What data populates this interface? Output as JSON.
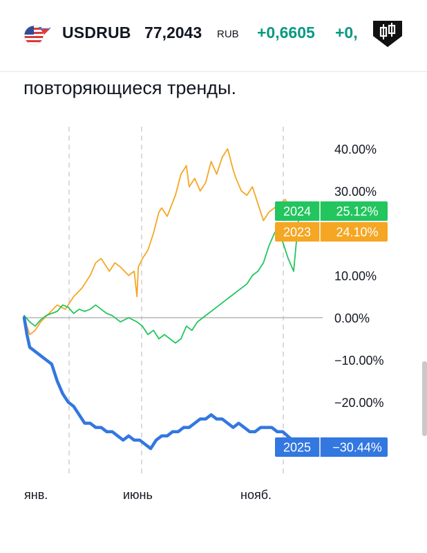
{
  "header": {
    "symbol": "USDRUB",
    "price": "77,2043",
    "currency": "RUB",
    "change": "+0,6605",
    "change_percent": "+0,",
    "flag_icon": "us-ru-flag-icon",
    "badge_icon": "candlestick-badge-icon",
    "positive_color": "#089981"
  },
  "content": {
    "subtitle": "повторяющиеся тренды."
  },
  "chart_data": {
    "type": "line",
    "x_tick_labels": [
      "янв.",
      "июнь",
      "нояб."
    ],
    "y_tick_labels": [
      "40.00%",
      "30.00%",
      "10.00%",
      "0.00%",
      "−10.00%",
      "−20.00%"
    ],
    "ylim": [
      -30,
      40
    ],
    "grid": "vertical-dashed",
    "series": [
      {
        "name": "2023",
        "color": "#f5a623",
        "label_value": "24.10%",
        "x": [
          0,
          0.01,
          0.02,
          0.04,
          0.06,
          0.09,
          0.12,
          0.15,
          0.18,
          0.21,
          0.24,
          0.26,
          0.28,
          0.31,
          0.33,
          0.35,
          0.38,
          0.4,
          0.41,
          0.415,
          0.43,
          0.45,
          0.47,
          0.49,
          0.5,
          0.52,
          0.55,
          0.57,
          0.59,
          0.6,
          0.62,
          0.64,
          0.66,
          0.68,
          0.7,
          0.72,
          0.74,
          0.76,
          0.77,
          0.79,
          0.81,
          0.83,
          0.85,
          0.87,
          0.89,
          0.91,
          0.93,
          0.95,
          0.97,
          1.0
        ],
        "values": [
          0.5,
          -2,
          -4,
          -3,
          -1,
          1,
          3,
          2,
          5,
          7,
          10,
          13,
          14,
          11,
          13,
          12,
          10,
          11,
          5,
          12,
          14,
          16,
          20,
          25,
          26,
          24,
          29,
          34,
          36,
          31,
          33,
          30,
          32,
          37,
          34,
          38,
          40,
          35,
          33,
          30,
          29,
          31,
          27,
          23,
          25,
          26,
          27,
          28,
          25,
          24.1
        ]
      },
      {
        "name": "2024",
        "color": "#22c55e",
        "label_value": "25.12%",
        "x": [
          0,
          0.02,
          0.04,
          0.06,
          0.08,
          0.1,
          0.12,
          0.14,
          0.16,
          0.18,
          0.2,
          0.22,
          0.24,
          0.26,
          0.28,
          0.3,
          0.32,
          0.35,
          0.38,
          0.41,
          0.43,
          0.45,
          0.47,
          0.49,
          0.51,
          0.53,
          0.55,
          0.57,
          0.59,
          0.61,
          0.63,
          0.65,
          0.67,
          0.69,
          0.71,
          0.73,
          0.75,
          0.77,
          0.79,
          0.81,
          0.83,
          0.85,
          0.87,
          0.89,
          0.91,
          0.93,
          0.94,
          0.96,
          0.98,
          1.0
        ],
        "values": [
          0.5,
          -1,
          -2,
          -0.5,
          0.5,
          1,
          1.5,
          3,
          2.5,
          1,
          2,
          1.5,
          2,
          3,
          2,
          1,
          0.5,
          -1,
          0,
          -1,
          -2,
          -4,
          -3,
          -5,
          -4,
          -5,
          -6,
          -5,
          -2,
          -3,
          -1,
          0,
          1,
          2,
          3,
          4,
          5,
          6,
          7,
          8,
          10,
          11,
          13,
          17,
          20,
          22,
          18,
          14,
          11,
          25.12
        ]
      },
      {
        "name": "2025",
        "color": "#3377e0",
        "label_value": "−30.44%",
        "x": [
          0,
          0.01,
          0.02,
          0.04,
          0.06,
          0.08,
          0.1,
          0.12,
          0.14,
          0.16,
          0.18,
          0.2,
          0.22,
          0.24,
          0.26,
          0.28,
          0.3,
          0.32,
          0.34,
          0.36,
          0.38,
          0.4,
          0.42,
          0.44,
          0.46,
          0.48,
          0.5,
          0.52,
          0.54,
          0.56,
          0.58,
          0.6,
          0.62,
          0.64,
          0.66,
          0.68,
          0.7,
          0.72,
          0.74,
          0.76,
          0.78,
          0.8,
          0.82,
          0.84,
          0.86,
          0.88,
          0.9,
          0.92,
          0.94,
          1.0
        ],
        "values": [
          0,
          -4,
          -7,
          -8,
          -9,
          -10,
          -11,
          -15,
          -18,
          -20,
          -21,
          -23,
          -25,
          -25,
          -26,
          -26,
          -27,
          -27,
          -28,
          -29,
          -28,
          -29,
          -29,
          -30,
          -31,
          -29,
          -28,
          -28,
          -27,
          -27,
          -26,
          -26,
          -25,
          -24,
          -24,
          -23,
          -24,
          -24,
          -25,
          -26,
          -25,
          -26,
          -27,
          -27,
          -26,
          -26,
          -26,
          -27,
          -27,
          -30.44
        ]
      }
    ]
  }
}
